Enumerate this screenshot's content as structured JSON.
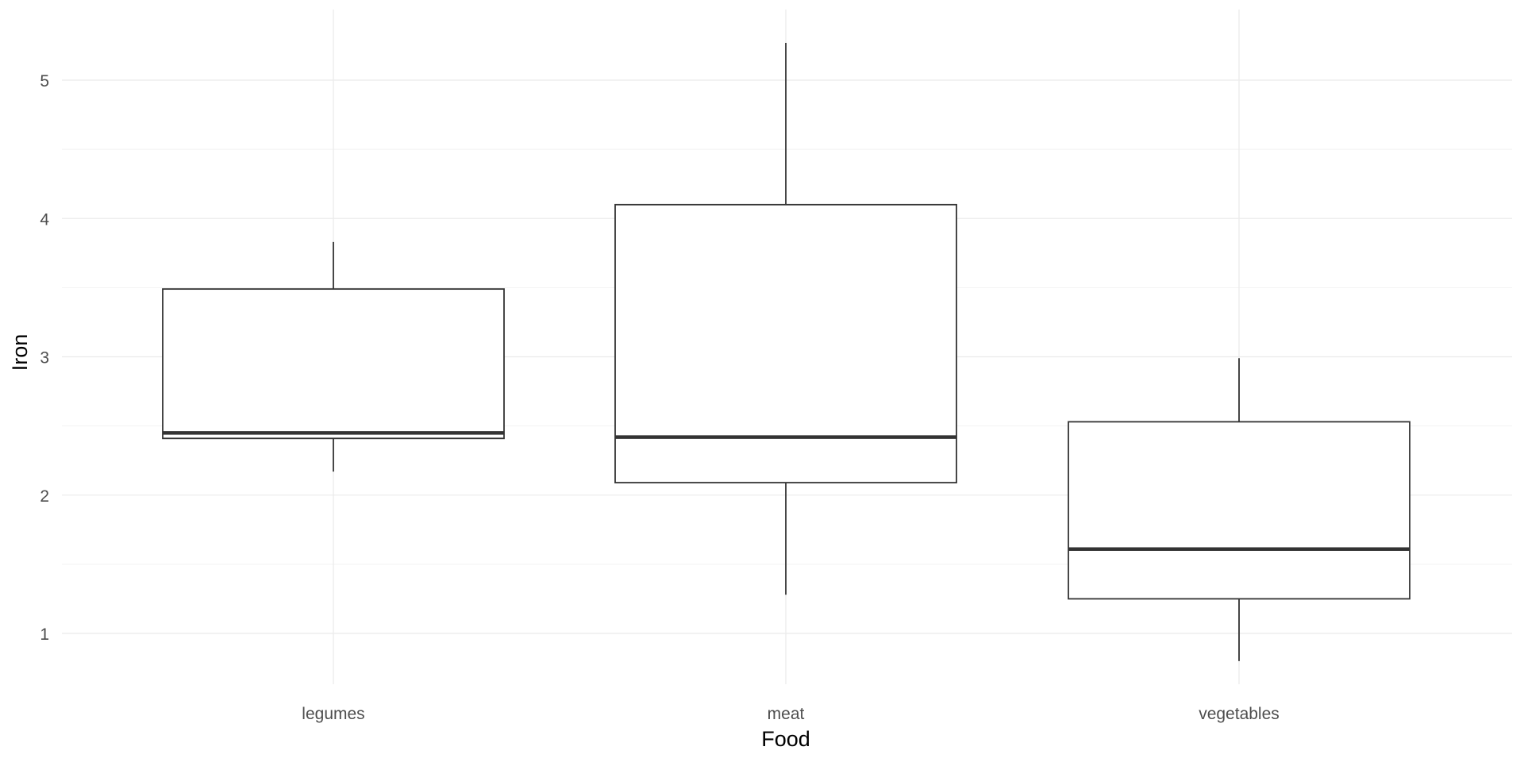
{
  "chart_data": {
    "type": "boxplot",
    "xlabel": "Food",
    "ylabel": "Iron",
    "categories": [
      "legumes",
      "meat",
      "vegetables"
    ],
    "boxes": [
      {
        "category": "legumes",
        "min": 2.17,
        "q1": 2.41,
        "median": 2.45,
        "q3": 3.49,
        "max": 3.83
      },
      {
        "category": "meat",
        "min": 1.28,
        "q1": 2.09,
        "median": 2.42,
        "q3": 4.1,
        "max": 5.27
      },
      {
        "category": "vegetables",
        "min": 0.8,
        "q1": 1.25,
        "median": 1.61,
        "q3": 2.53,
        "max": 2.99
      }
    ],
    "yticks": [
      1,
      2,
      3,
      4,
      5
    ],
    "yticks_minor": [
      1.5,
      2.5,
      3.5,
      4.5
    ],
    "ylim": [
      0.6,
      5.5
    ],
    "grid": true,
    "legend": "none",
    "colors": {
      "box_fill": "#ffffff",
      "box_stroke": "#333333",
      "grid_major": "#ebebeb",
      "grid_minor": "#f2f2f2",
      "tick_text": "#4d4d4d"
    }
  }
}
